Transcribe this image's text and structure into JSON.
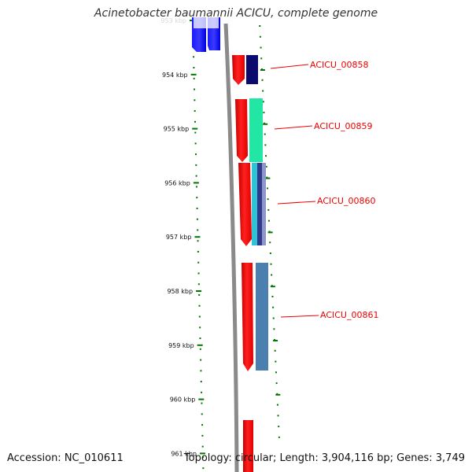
{
  "title": "Acinetobacter baumannii ACICU, complete genome",
  "footer": {
    "accession": "Accession: NC_010611",
    "summary": "Topology: circular; Length: 3,904,116 bp; Genes: 3,749"
  },
  "colors": {
    "gene_label": "#ee0000",
    "forward_cds": "#ff0000",
    "backbone": "#8a8a8a",
    "tick": "#007700"
  },
  "scale": {
    "labels": [
      "953 kbp",
      "954 kbp",
      "955 kbp",
      "956 kbp",
      "957 kbp",
      "958 kbp",
      "959 kbp",
      "960 kbp",
      "961 kbp"
    ]
  },
  "genes": [
    {
      "name": "ACICU_00858"
    },
    {
      "name": "ACICU_00859"
    },
    {
      "name": "ACICU_00860"
    },
    {
      "name": "ACICU_00861"
    }
  ]
}
